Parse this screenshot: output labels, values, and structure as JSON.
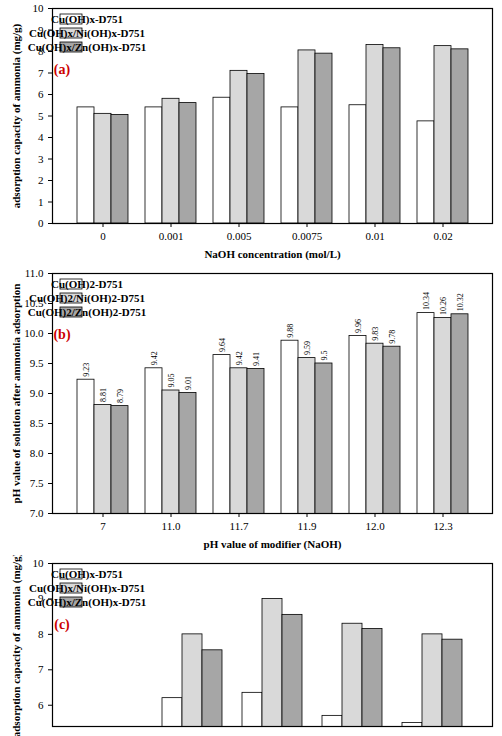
{
  "chart_data": [
    {
      "type": "bar",
      "annotation": "(a)",
      "x_label": "NaOH concentration (mol/L)",
      "y_label": "adsorption capacity of ammonia (mg/g)",
      "categories": [
        "0",
        "0.001",
        "0.005",
        "0.0075",
        "0.01",
        "0.02"
      ],
      "series": [
        {
          "name": "Cu(OH)x-D751",
          "color": "#ffffff",
          "values": [
            5.4,
            5.4,
            5.85,
            5.4,
            5.5,
            4.75
          ]
        },
        {
          "name": "Cu(OH)x/Ni(OH)x-D751",
          "color": "#d9d9d9",
          "values": [
            5.1,
            5.8,
            7.1,
            8.05,
            8.3,
            8.25
          ]
        },
        {
          "name": "Cu(OH)x/Zn(OH)x-D751",
          "color": "#a6a6a6",
          "values": [
            5.05,
            5.6,
            6.95,
            7.9,
            8.15,
            8.1
          ]
        }
      ],
      "ylim": [
        0,
        10
      ],
      "yticks": [
        0,
        1,
        2,
        3,
        4,
        5,
        6,
        7,
        8,
        9,
        10
      ],
      "legend": "top-left",
      "grid": false
    },
    {
      "type": "bar",
      "annotation": "(b)",
      "x_label": "pH value of modifier (NaOH)",
      "y_label": "pH value of solution after ammonia adsorption",
      "categories": [
        "7",
        "11.0",
        "11.7",
        "11.9",
        "12.0",
        "12.3"
      ],
      "series": [
        {
          "name": "Cu(OH)2-D751",
          "color": "#ffffff",
          "values": [
            9.23,
            9.42,
            9.64,
            9.88,
            9.96,
            10.34
          ]
        },
        {
          "name": "Cu(OH)2/Ni(OH)2-D751",
          "color": "#d9d9d9",
          "values": [
            8.81,
            9.05,
            9.42,
            9.59,
            9.83,
            10.26
          ]
        },
        {
          "name": "Cu(OH)2/Zn(OH)2-D751",
          "color": "#a6a6a6",
          "values": [
            8.79,
            9.01,
            9.41,
            9.5,
            9.78,
            10.32
          ]
        }
      ],
      "ylim": [
        7,
        11
      ],
      "yticks": [
        {
          "value": 7,
          "label": "7.0"
        },
        7.5,
        {
          "value": 8,
          "label": "8.0"
        },
        8.5,
        {
          "value": 9,
          "label": "9.0"
        },
        9.5,
        {
          "value": 10,
          "label": "10.0"
        },
        10.5,
        {
          "value": 11,
          "label": "11.0"
        }
      ],
      "legend": "top-left",
      "grid": false,
      "data_labels": true
    },
    {
      "type": "bar",
      "annotation": "(c)",
      "y_label": "adsorption capacity of ammonia (mg/g)",
      "categories": [
        null,
        null,
        null,
        null,
        null
      ],
      "series": [
        {
          "name": "Cu(OH)x-D751",
          "color": "#ffffff",
          "values": [
            null,
            6.2,
            6.35,
            5.7,
            5.5
          ]
        },
        {
          "name": "Cu(OH)x/Ni(OH)x-D751",
          "color": "#d9d9d9",
          "values": [
            null,
            8.0,
            9.0,
            8.3,
            8.0
          ]
        },
        {
          "name": "Cu(OH)x/Zn(OH)x-D751",
          "color": "#a6a6a6",
          "values": [
            null,
            7.55,
            8.55,
            8.15,
            7.85
          ]
        }
      ],
      "ylim": [
        5.4,
        10
      ],
      "yticks": [
        6,
        7,
        8,
        9,
        10
      ],
      "legend": "top-left",
      "grid": false,
      "tick_labels": "y"
    }
  ]
}
